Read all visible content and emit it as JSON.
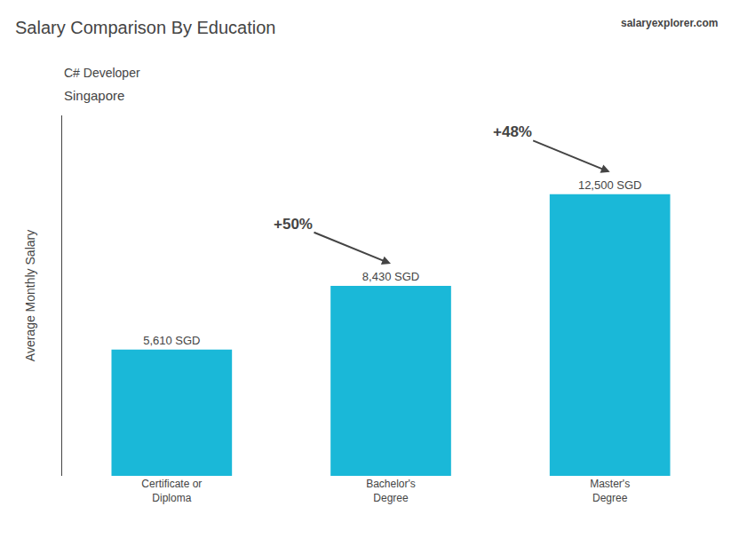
{
  "chart_data": {
    "type": "bar",
    "title": "Salary Comparison By Education",
    "subtitle": [
      "C# Developer",
      "Singapore"
    ],
    "annotations": [
      "salaryexplorer.com"
    ],
    "ylabel": "Average Monthly Salary",
    "categories": [
      "Certificate or\nDiploma",
      "Bachelor's\nDegree",
      "Master's\nDegree"
    ],
    "values": [
      5610,
      8430,
      12500
    ],
    "value_labels": [
      "5,610 SGD",
      "8,430 SGD",
      "12,500 SGD"
    ],
    "change_labels": [
      "+50%",
      "+48%"
    ],
    "color": "#1ab8d8",
    "ylim": [
      0,
      16000
    ],
    "data_labels": true,
    "tick_labels": "x",
    "grid": false
  }
}
